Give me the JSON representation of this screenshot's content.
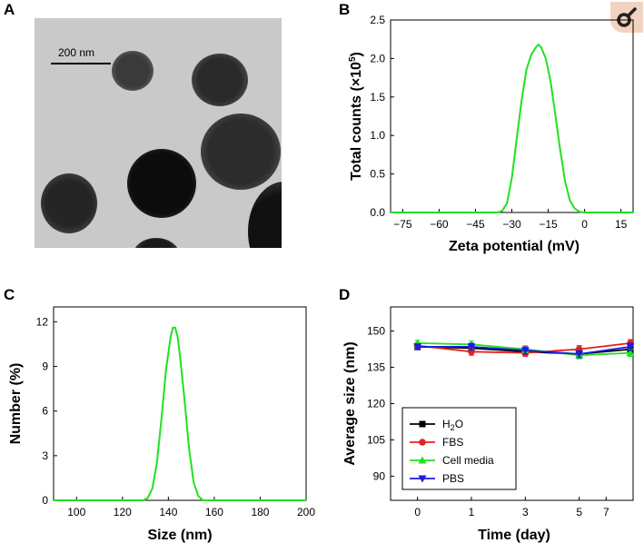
{
  "panels": {
    "a": {
      "letter": "A",
      "scale_label": "200 nm"
    },
    "b": {
      "letter": "B"
    },
    "c": {
      "letter": "C"
    },
    "d": {
      "letter": "D"
    }
  },
  "badge": {
    "icon": "share-icon"
  },
  "colors": {
    "green": "#22e022",
    "black": "#000000",
    "red": "#e52020",
    "blue": "#1c1ce0"
  },
  "chart_data": [
    {
      "id": "b",
      "type": "line",
      "xlabel": "Zeta potential (mV)",
      "ylabel": "Total counts (×10",
      "ylabel_sup": "5",
      "ylabel_close": ")",
      "xlim": [
        -80,
        20
      ],
      "ylim": [
        0,
        2.5
      ],
      "xticks": [
        "−75",
        "−60",
        "−45",
        "−30",
        "−15",
        "0",
        "15"
      ],
      "xtick_values": [
        -75,
        -60,
        -45,
        -30,
        -15,
        0,
        15
      ],
      "yticks": [
        "0.0",
        "0.5",
        "1.0",
        "1.5",
        "2.0",
        "2.5"
      ],
      "ytick_values": [
        0,
        0.5,
        1.0,
        1.5,
        2.0,
        2.5
      ],
      "series": [
        {
          "color": "#22e022",
          "x": [
            -80,
            -36,
            -34,
            -32,
            -30,
            -28,
            -26,
            -24,
            -22,
            -20,
            -19,
            -18,
            -16,
            -14,
            -12,
            -10,
            -8,
            -6,
            -4,
            -2,
            0,
            20
          ],
          "y": [
            0,
            0,
            0.02,
            0.12,
            0.45,
            0.95,
            1.45,
            1.85,
            2.05,
            2.15,
            2.18,
            2.15,
            2.0,
            1.7,
            1.25,
            0.8,
            0.4,
            0.15,
            0.05,
            0.01,
            0,
            0
          ]
        }
      ]
    },
    {
      "id": "c",
      "type": "line",
      "xlabel": "Size (nm)",
      "ylabel": "Number (%)",
      "xlim": [
        90,
        200
      ],
      "ylim": [
        0,
        13
      ],
      "xticks": [
        "100",
        "120",
        "140",
        "160",
        "180",
        "200"
      ],
      "xtick_values": [
        100,
        120,
        140,
        160,
        180,
        200
      ],
      "yticks": [
        "0",
        "3",
        "6",
        "9",
        "12"
      ],
      "ytick_values": [
        0,
        3,
        6,
        9,
        12
      ],
      "series": [
        {
          "color": "#22e022",
          "x": [
            90,
            129,
            131,
            133,
            135,
            137,
            139,
            141,
            142,
            143,
            144,
            145,
            147,
            149,
            151,
            153,
            155,
            200
          ],
          "y": [
            0,
            0,
            0.15,
            0.8,
            2.5,
            5.5,
            8.8,
            11.0,
            11.6,
            11.6,
            11.0,
            9.8,
            6.8,
            3.5,
            1.2,
            0.3,
            0,
            0
          ]
        }
      ]
    },
    {
      "id": "d",
      "type": "line",
      "xlabel": "Time (day)",
      "ylabel": "Average size (nm)",
      "xlim": [
        -1,
        8
      ],
      "ylim": [
        80,
        160
      ],
      "xticks": [
        "0",
        "1",
        "3",
        "5",
        "7"
      ],
      "xtick_positions": [
        0,
        2,
        4,
        6,
        7
      ],
      "yticks": [
        "90",
        "105",
        "120",
        "135",
        "150"
      ],
      "ytick_values": [
        90,
        105,
        120,
        135,
        150
      ],
      "x_positions": [
        0,
        2,
        4,
        6,
        7.9
      ],
      "legend_position": "bottom-left",
      "series": [
        {
          "name": "H",
          "name_sub": "2",
          "name_rest": "O",
          "marker": "square",
          "color": "#000000",
          "values": [
            143.5,
            143.0,
            141.5,
            140.5,
            142.5
          ],
          "errors": [
            1.2,
            1.5,
            1.5,
            1.5,
            1.5
          ]
        },
        {
          "name": "FBS",
          "marker": "circle",
          "color": "#e52020",
          "values": [
            144.0,
            141.5,
            141.0,
            142.5,
            145.0
          ],
          "errors": [
            1.2,
            1.5,
            1.5,
            1.5,
            1.5
          ]
        },
        {
          "name": "Cell media",
          "marker": "triangle-up",
          "color": "#22e022",
          "values": [
            145.0,
            144.5,
            142.5,
            140.0,
            141.0
          ],
          "errors": [
            1.2,
            1.5,
            1.5,
            1.5,
            1.5
          ]
        },
        {
          "name": "PBS",
          "marker": "triangle-down",
          "color": "#1c1ce0",
          "values": [
            143.5,
            143.5,
            142.0,
            140.5,
            143.5
          ],
          "errors": [
            1.2,
            1.5,
            1.5,
            1.5,
            1.5
          ]
        }
      ]
    }
  ]
}
